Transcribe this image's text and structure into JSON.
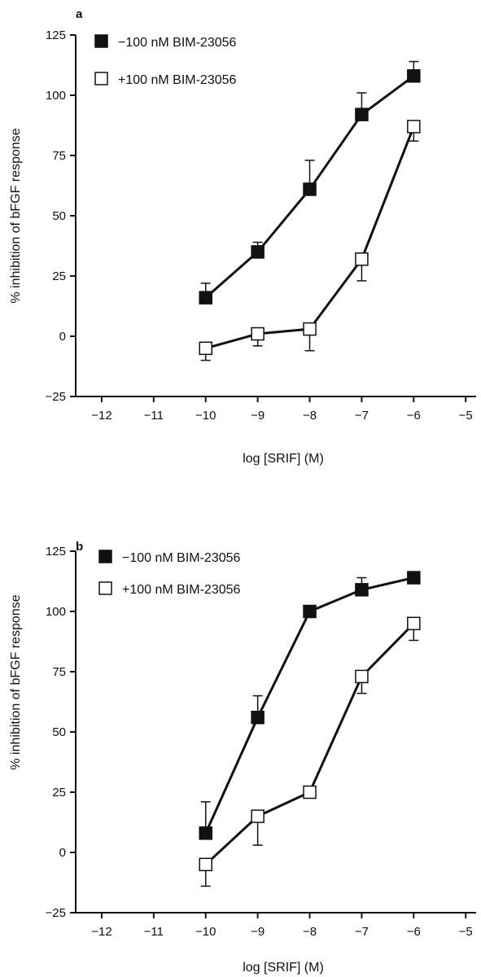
{
  "chart_data": [
    {
      "panel": "a",
      "type": "line",
      "xlabel": "log [SRIF] (M)",
      "ylabel": "% inhibition of bFGF response",
      "xlim": [
        -12.5,
        -4.8
      ],
      "ylim": [
        -25,
        125
      ],
      "xticks": [
        -12,
        -11,
        -10,
        -9,
        -8,
        -7,
        -6,
        -5
      ],
      "xtick_labels": [
        "−12",
        "−11",
        "−10",
        "−9",
        "−8",
        "−7",
        "−6",
        "−5"
      ],
      "yticks": [
        125,
        100,
        75,
        50,
        25,
        0,
        -25
      ],
      "ytick_labels": [
        "125",
        "100",
        "75",
        "50",
        "25",
        "0",
        "−25"
      ],
      "legend_position": "top-left",
      "series": [
        {
          "name": "−100 nM  BIM-23056",
          "marker": "filled-square",
          "x": [
            -10,
            -9,
            -8,
            -7,
            -6
          ],
          "y": [
            16,
            35,
            61,
            92,
            108
          ],
          "error_up": [
            6,
            4,
            12,
            9,
            6
          ],
          "error_down": [
            0,
            0,
            0,
            0,
            0
          ]
        },
        {
          "name": "+100 nM BIM-23056",
          "marker": "open-square",
          "x": [
            -10,
            -9,
            -8,
            -7,
            -6
          ],
          "y": [
            -5,
            1,
            3,
            32,
            87
          ],
          "error_up": [
            0,
            0,
            0,
            0,
            0
          ],
          "error_down": [
            5,
            5,
            9,
            9,
            6
          ]
        }
      ]
    },
    {
      "panel": "b",
      "type": "line",
      "xlabel": "log [SRIF] (M)",
      "ylabel": "% inhibition of bFGF response",
      "xlim": [
        -12.5,
        -4.8
      ],
      "ylim": [
        -25,
        125
      ],
      "xticks": [
        -12,
        -11,
        -10,
        -9,
        -8,
        -7,
        -6,
        -5
      ],
      "xtick_labels": [
        "−12",
        "−11",
        "−10",
        "−9",
        "−8",
        "−7",
        "−6",
        "−5"
      ],
      "yticks": [
        125,
        100,
        75,
        50,
        25,
        0,
        -25
      ],
      "ytick_labels": [
        "125",
        "100",
        "75",
        "50",
        "25",
        "0",
        "−25"
      ],
      "legend_position": "top-left",
      "series": [
        {
          "name": "−100 nM  BIM-23056",
          "marker": "filled-square",
          "x": [
            -10,
            -9,
            -8,
            -7,
            -6
          ],
          "y": [
            8,
            56,
            100,
            109,
            114
          ],
          "error_up": [
            13,
            9,
            0,
            5,
            0
          ],
          "error_down": [
            0,
            0,
            0,
            0,
            0
          ]
        },
        {
          "name": "+100 nM BIM-23056",
          "marker": "open-square",
          "x": [
            -10,
            -9,
            -8,
            -7,
            -6
          ],
          "y": [
            -5,
            15,
            25,
            73,
            95
          ],
          "error_up": [
            0,
            0,
            0,
            0,
            0
          ],
          "error_down": [
            9,
            12,
            0,
            7,
            7
          ]
        }
      ]
    }
  ]
}
